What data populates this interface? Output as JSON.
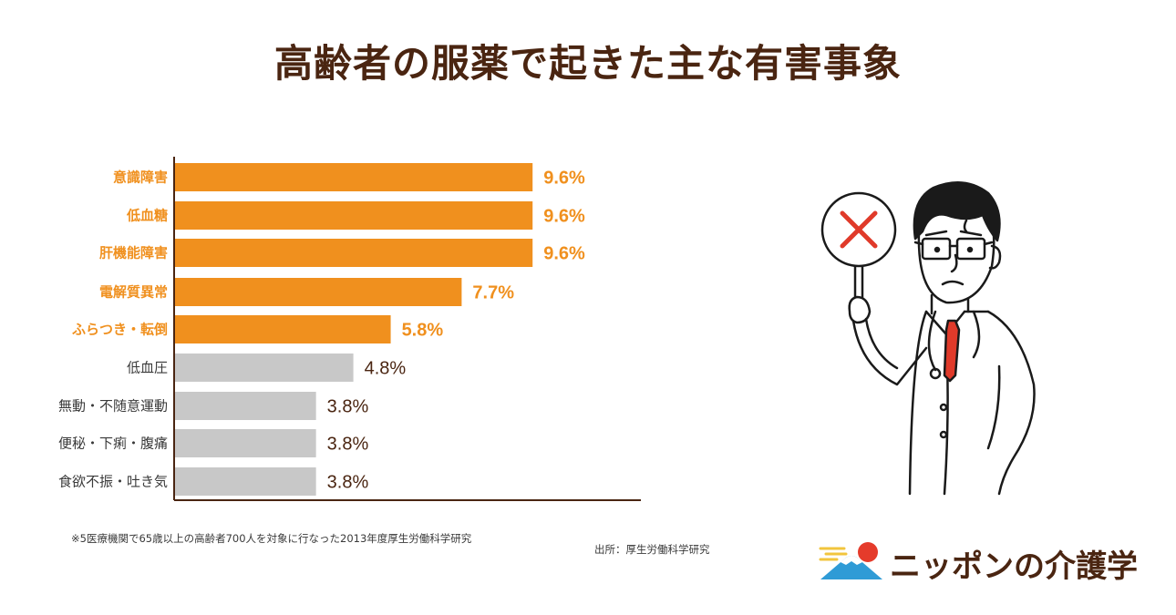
{
  "chart_data": {
    "type": "bar",
    "orientation": "horizontal",
    "title": "高齢者の服薬で起きた主な有害事象",
    "categories": [
      "意識障害",
      "低血糖",
      "肝機能障害",
      "電解質異常",
      "ふらつき・転倒",
      "低血圧",
      "無動・不随意運動",
      "便秘・下痢・腹痛",
      "食欲不振・吐き気"
    ],
    "values": [
      9.6,
      9.6,
      9.6,
      7.7,
      5.8,
      4.8,
      3.8,
      3.8,
      3.8
    ],
    "value_labels": [
      "9.6%",
      "9.6%",
      "9.6%",
      "7.7%",
      "5.8%",
      "4.8%",
      "3.8%",
      "3.8%",
      "3.8%"
    ],
    "highlight": [
      true,
      true,
      true,
      true,
      true,
      false,
      false,
      false,
      false
    ],
    "unit": "%",
    "xlim": [
      0,
      12.5
    ],
    "xlabel": "",
    "ylabel": ""
  },
  "colors": {
    "highlight": "#f0901e",
    "normal": "#c8c8c8",
    "title": "#4a2511",
    "label_normal": "#3a3a3a",
    "value_normal": "#4a2511"
  },
  "footnote": "※5医療機関で65歳以上の高齢者700人を対象に行なった2013年度厚生労働科学研究",
  "source": "出所：厚生労働科学研究",
  "logo": {
    "text": "ニッポンの介護学",
    "icon": "mount-fuji-sun-icon"
  },
  "illustration": {
    "icon": "doctor-holding-x-sign-icon"
  }
}
